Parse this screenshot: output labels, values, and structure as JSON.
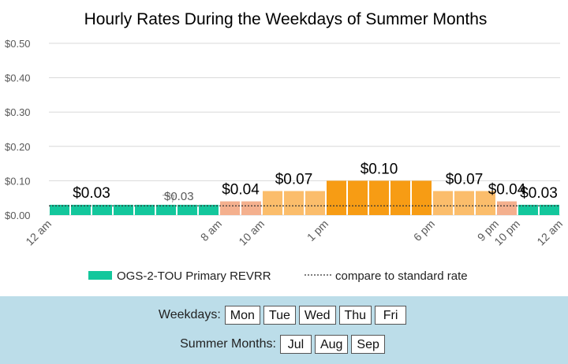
{
  "chart_data": {
    "type": "bar",
    "title": "Hourly Rates During the Weekdays of Summer Months",
    "ylim": [
      0,
      0.5
    ],
    "yticks": [
      "$0.50",
      "$0.40",
      "$0.30",
      "$0.20",
      "$0.10",
      "$0.00"
    ],
    "ytick_values": [
      0.5,
      0.4,
      0.3,
      0.2,
      0.1,
      0.0
    ],
    "grid": true,
    "legend_position": "bottom",
    "xtick_labels": [
      {
        "label": "12 am",
        "hour": 0
      },
      {
        "label": "8 am",
        "hour": 8
      },
      {
        "label": "10 am",
        "hour": 10
      },
      {
        "label": "1 pm",
        "hour": 13
      },
      {
        "label": "6 pm",
        "hour": 18
      },
      {
        "label": "9 pm",
        "hour": 21
      },
      {
        "label": "10 pm",
        "hour": 22
      },
      {
        "label": "12 am",
        "hour": 24
      }
    ],
    "hours": [
      0,
      1,
      2,
      3,
      4,
      5,
      6,
      7,
      8,
      9,
      10,
      11,
      12,
      13,
      14,
      15,
      16,
      17,
      18,
      19,
      20,
      21,
      22,
      23
    ],
    "values": [
      0.03,
      0.03,
      0.03,
      0.03,
      0.03,
      0.03,
      0.03,
      0.03,
      0.04,
      0.04,
      0.07,
      0.07,
      0.07,
      0.1,
      0.1,
      0.1,
      0.1,
      0.1,
      0.07,
      0.07,
      0.07,
      0.04,
      0.03,
      0.03
    ],
    "colors": [
      "#13c79c",
      "#13c79c",
      "#13c79c",
      "#13c79c",
      "#13c79c",
      "#13c79c",
      "#13c79c",
      "#13c79c",
      "#f4b08e",
      "#f4b08e",
      "#fbbd6b",
      "#fbbd6b",
      "#fbbd6b",
      "#f79c14",
      "#f79c14",
      "#f79c14",
      "#f79c14",
      "#f79c14",
      "#fbbd6b",
      "#fbbd6b",
      "#fbbd6b",
      "#f4b08e",
      "#13c79c",
      "#13c79c"
    ],
    "standard_rate": 0.027,
    "data_labels": [
      {
        "text": "$0.03",
        "hour": 2,
        "value": 0.03,
        "style": "large"
      },
      {
        "text": "$0.03",
        "hour": 6,
        "value": 0.03,
        "style": "callout"
      },
      {
        "text": "$0.04",
        "hour": 9,
        "value": 0.04,
        "style": "large"
      },
      {
        "text": "$0.07",
        "hour": 11.5,
        "value": 0.07,
        "style": "large"
      },
      {
        "text": "$0.10",
        "hour": 15.5,
        "value": 0.1,
        "style": "large"
      },
      {
        "text": "$0.07",
        "hour": 19.5,
        "value": 0.07,
        "style": "large"
      },
      {
        "text": "$0.04",
        "hour": 21.5,
        "value": 0.04,
        "style": "large"
      },
      {
        "text": "$0.03",
        "hour": 23,
        "value": 0.03,
        "style": "large"
      }
    ],
    "legend": {
      "series_label": "OGS-2-TOU Primary REVRR",
      "series_color": "#13c79c",
      "standard_label": "compare to standard rate"
    }
  },
  "controls": {
    "weekdays_label": "Weekdays:",
    "weekdays": [
      "Mon",
      "Tue",
      "Wed",
      "Thu",
      "Fri"
    ],
    "months_label": "Summer Months:",
    "months": [
      "Jul",
      "Aug",
      "Sep"
    ],
    "panel_color": "#bcdde9"
  }
}
